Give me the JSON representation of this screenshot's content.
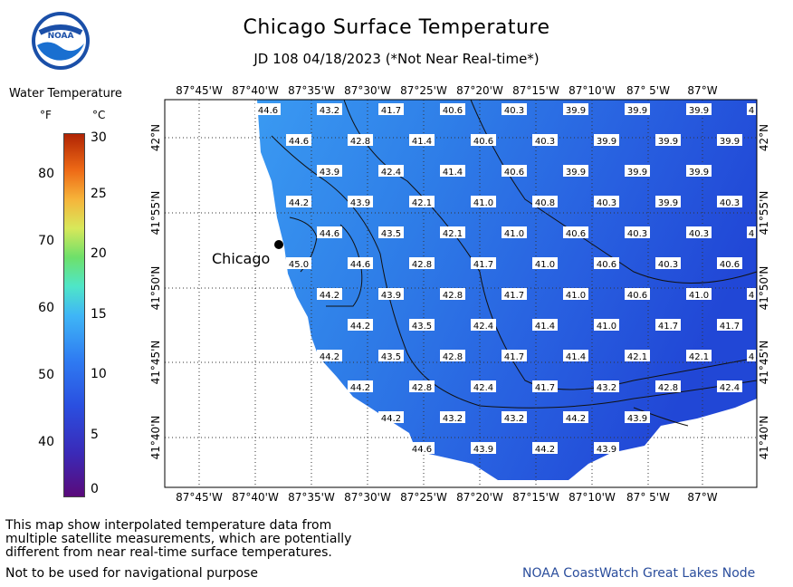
{
  "title": "Chicago Surface Temperature",
  "subtitle": "JD 108 04/18/2023 (*Not Near Real-time*)",
  "legend": {
    "title": "Water Temperature",
    "unit_f": "°F",
    "unit_c": "°C",
    "f_ticks": [
      "80",
      "70",
      "60",
      "50",
      "40"
    ],
    "c_ticks": [
      "30",
      "25",
      "20",
      "15",
      "10",
      "5",
      "0"
    ]
  },
  "city": "Chicago",
  "lon_labels": [
    "87°45'W",
    "87°40'W",
    "87°35'W",
    "87°30'W",
    "87°25'W",
    "87°20'W",
    "87°15'W",
    "87°10'W",
    "87° 5'W",
    "87°W"
  ],
  "lat_labels": [
    "42°N",
    "41°55'N",
    "41°50'N",
    "41°45'N",
    "41°40'N"
  ],
  "temps": [
    [
      "44.6",
      "43.2",
      "41.7",
      "40.6",
      "40.3",
      "39.9",
      "39.9",
      "39.9",
      "4"
    ],
    [
      "44.6",
      "42.8",
      "41.4",
      "40.6",
      "40.3",
      "39.9",
      "39.9",
      "39.9"
    ],
    [
      "43.9",
      "42.4",
      "41.4",
      "40.6",
      "39.9",
      "39.9",
      "39.9"
    ],
    [
      "44.2",
      "43.9",
      "42.1",
      "41.0",
      "40.8",
      "40.3",
      "39.9",
      "40.3"
    ],
    [
      "44.6",
      "43.5",
      "42.1",
      "41.0",
      "40.6",
      "40.3",
      "40.3",
      "4"
    ],
    [
      "45.0",
      "44.6",
      "42.8",
      "41.7",
      "41.0",
      "40.6",
      "40.3",
      "40.6"
    ],
    [
      "44.2",
      "43.9",
      "42.8",
      "41.7",
      "41.0",
      "40.6",
      "41.0",
      "4"
    ],
    [
      "44.2",
      "43.5",
      "42.4",
      "41.4",
      "41.0",
      "41.7",
      "41.7"
    ],
    [
      "44.2",
      "43.5",
      "42.8",
      "41.7",
      "41.4",
      "42.1",
      "42.1",
      "4"
    ],
    [
      "44.2",
      "42.8",
      "42.4",
      "41.7",
      "43.2",
      "42.8",
      "42.4"
    ],
    [
      "44.2",
      "43.2",
      "43.2",
      "44.2",
      "43.9"
    ],
    [
      "44.6",
      "43.9",
      "44.2",
      "43.9"
    ]
  ],
  "footer": {
    "note": "This map show interpolated temperature data from\nmultiple satellite measurements, which are potentially\ndifferent from near real-time surface temperatures.",
    "nav": "Not to be used for navigational purpose",
    "credit": "NOAA CoastWatch Great Lakes Node"
  },
  "colors": {
    "water_dark": "#2248d8",
    "water_light": "#3a90f0",
    "land": "#ffffff",
    "credit": "#2a4d9c"
  }
}
